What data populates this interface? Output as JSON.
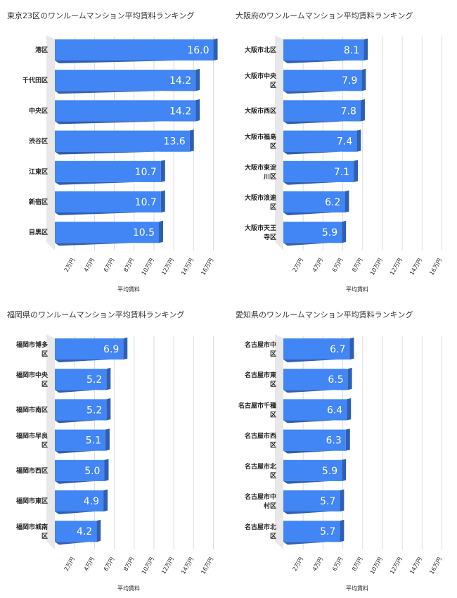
{
  "colors": {
    "bar_front": "#4285f4",
    "bar_side": "#2f5fb3",
    "bar_top": "#6f9cf0",
    "floor": "#e8e8e8"
  },
  "chart_data": [
    {
      "type": "bar",
      "orientation": "horizontal",
      "title": "東京23区のワンルームマンション平均賃料ランキング",
      "xlabel": "平均賃料",
      "categories": [
        [
          "港区"
        ],
        [
          "千代田区"
        ],
        [
          "中央区"
        ],
        [
          "渋谷区"
        ],
        [
          "江東区"
        ],
        [
          "新宿区"
        ],
        [
          "目黒区"
        ]
      ],
      "values": [
        16.0,
        14.2,
        14.2,
        13.6,
        10.7,
        10.7,
        10.5
      ],
      "value_labels": [
        "16.0",
        "14.2",
        "14.2",
        "13.6",
        "10.7",
        "10.7",
        "10.5"
      ],
      "xticks": [
        "2万円",
        "4万円",
        "6万円",
        "8万円",
        "10万円",
        "12万円",
        "14万円",
        "16万円"
      ],
      "xtick_values": [
        2,
        4,
        6,
        8,
        10,
        12,
        14,
        16
      ],
      "xlim": [
        0,
        16.6
      ],
      "grid": true
    },
    {
      "type": "bar",
      "orientation": "horizontal",
      "title": "大阪府のワンルームマンション平均賃料ランキング",
      "xlabel": "平均賃料",
      "categories": [
        [
          "大阪市北区"
        ],
        [
          "大阪市中央",
          "区"
        ],
        [
          "大阪市西区"
        ],
        [
          "大阪市福島",
          "区"
        ],
        [
          "大阪市東淀",
          "川区"
        ],
        [
          "大阪市浪速",
          "区"
        ],
        [
          "大阪市天王",
          "寺区"
        ]
      ],
      "values": [
        8.1,
        7.9,
        7.8,
        7.4,
        7.1,
        6.2,
        5.9
      ],
      "value_labels": [
        "8.1",
        "7.9",
        "7.8",
        "7.4",
        "7.1",
        "6.2",
        "5.9"
      ],
      "xticks": [
        "2万円",
        "4万円",
        "6万円",
        "8万円",
        "10万円",
        "12万円",
        "14万円",
        "16万円"
      ],
      "xtick_values": [
        2,
        4,
        6,
        8,
        10,
        12,
        14,
        16
      ],
      "xlim": [
        0,
        16.6
      ],
      "grid": true
    },
    {
      "type": "bar",
      "orientation": "horizontal",
      "title": "福岡県のワンルームマンション平均賃料ランキング",
      "xlabel": "平均賃料",
      "categories": [
        [
          "福岡市博多",
          "区"
        ],
        [
          "福岡市中央",
          "区"
        ],
        [
          "福岡市南区"
        ],
        [
          "福岡市早良",
          "区"
        ],
        [
          "福岡市西区"
        ],
        [
          "福岡市東区"
        ],
        [
          "福岡市城南",
          "区"
        ]
      ],
      "values": [
        6.9,
        5.2,
        5.2,
        5.1,
        5.0,
        4.9,
        4.2
      ],
      "value_labels": [
        "6.9",
        "5.2",
        "5.2",
        "5.1",
        "5.0",
        "4.9",
        "4.2"
      ],
      "xticks": [
        "2万円",
        "4万円",
        "6万円",
        "8万円",
        "10万円",
        "12万円",
        "14万円",
        "16万円"
      ],
      "xtick_values": [
        2,
        4,
        6,
        8,
        10,
        12,
        14,
        16
      ],
      "xlim": [
        0,
        16.6
      ],
      "grid": true
    },
    {
      "type": "bar",
      "orientation": "horizontal",
      "title": "愛知県のワンルームマンション平均賃料ランキング",
      "xlabel": "平均賃料",
      "categories": [
        [
          "名古屋市中",
          "区"
        ],
        [
          "名古屋市東",
          "区"
        ],
        [
          "名古屋市千種",
          "区"
        ],
        [
          "名古屋市西",
          "区"
        ],
        [
          "名古屋市北",
          "区"
        ],
        [
          "名古屋市中",
          "村区"
        ],
        [
          "名古屋市北",
          "区"
        ]
      ],
      "values": [
        6.7,
        6.5,
        6.4,
        6.3,
        5.9,
        5.7,
        5.7
      ],
      "value_labels": [
        "6.7",
        "6.5",
        "6.4",
        "6.3",
        "5.9",
        "5.7",
        "5.7"
      ],
      "xticks": [
        "2万円",
        "4万円",
        "6万円",
        "8万円",
        "10万円",
        "12万円",
        "14万円",
        "16万円"
      ],
      "xtick_values": [
        2,
        4,
        6,
        8,
        10,
        12,
        14,
        16
      ],
      "xlim": [
        0,
        16.6
      ],
      "grid": true
    }
  ]
}
